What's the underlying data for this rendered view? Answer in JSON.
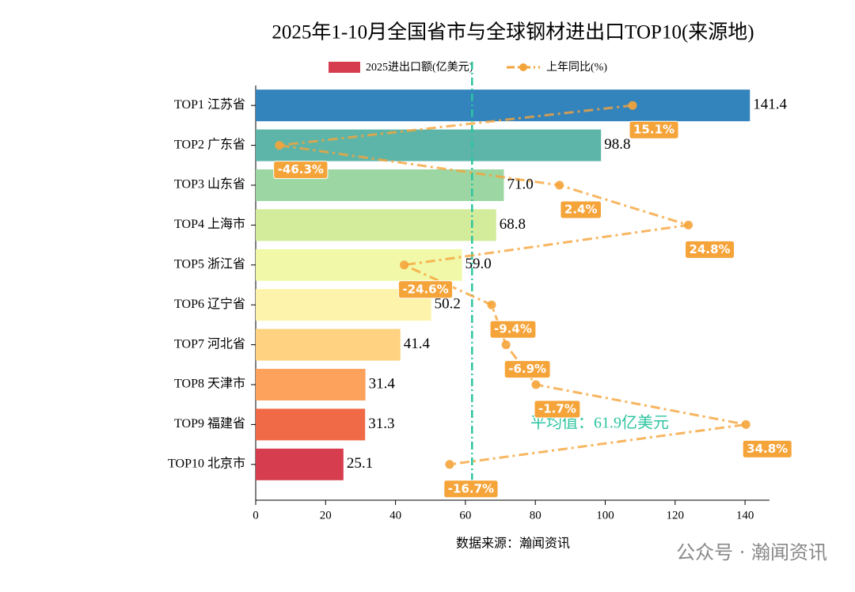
{
  "chart_data": {
    "type": "bar",
    "orientation": "horizontal",
    "title": "2025年1-10月全国省市与全球钢材进出口TOP10(来源地)",
    "categories": [
      "TOP1 江苏省",
      "TOP2 广东省",
      "TOP3 山东省",
      "TOP4 上海市",
      "TOP5 浙江省",
      "TOP6 辽宁省",
      "TOP7 河北省",
      "TOP8 天津市",
      "TOP9 福建省",
      "TOP10 北京市"
    ],
    "series": [
      {
        "name": "2025进出口额(亿美元)",
        "color": "#d63e50",
        "colors": [
          "#3383bc",
          "#5db5a9",
          "#9cd7a3",
          "#d2ec9b",
          "#f1f8a8",
          "#fef3aa",
          "#fed280",
          "#fca25c",
          "#f06a47",
          "#d63e50"
        ],
        "values": [
          141.4,
          98.8,
          71.0,
          68.8,
          59.0,
          50.2,
          41.4,
          31.4,
          31.3,
          25.1
        ],
        "value_labels": [
          "141.4",
          "98.8",
          "71.0",
          "68.8",
          "59.0",
          "50.2",
          "41.4",
          "31.4",
          "31.3",
          "25.1"
        ]
      },
      {
        "name": "上年同比(%)",
        "type": "line",
        "axis": "x2",
        "color": "#f5a43a",
        "values": [
          15.1,
          -46.3,
          2.4,
          24.8,
          -24.6,
          -9.4,
          -6.9,
          -1.7,
          34.8,
          -16.7
        ],
        "value_labels": [
          "15.1%",
          "-46.3%",
          "2.4%",
          "24.8%",
          "-24.6%",
          "-9.4%",
          "-6.9%",
          "-1.7%",
          "34.8%",
          "-16.7%"
        ]
      }
    ],
    "xlim": [
      0,
      147
    ],
    "xticks": [
      0,
      20,
      40,
      60,
      80,
      100,
      120,
      140
    ],
    "x2lim": [
      -50.4,
      38.9
    ],
    "average": {
      "value": 61.9,
      "label": "平均值：61.9亿美元",
      "color": "#2ec4a0"
    },
    "source": "数据来源：瀚闻资讯",
    "watermark": "公众号 · 瀚闻资讯"
  }
}
